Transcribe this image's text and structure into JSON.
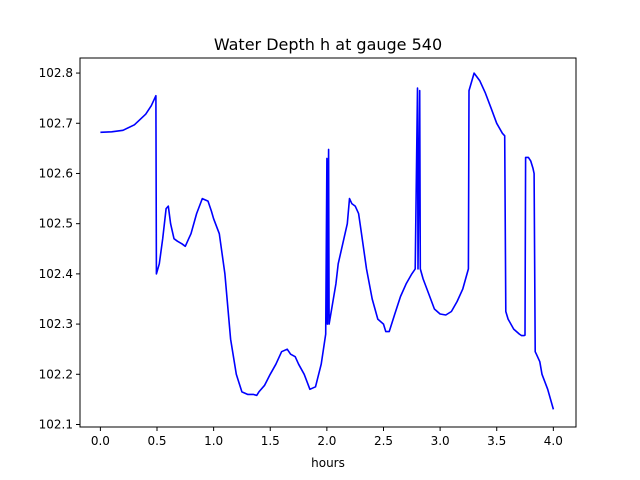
{
  "chart_data": {
    "type": "line",
    "title": "Water Depth h at gauge 540",
    "xlabel": "hours",
    "ylabel": "",
    "xlim": [
      -0.18,
      4.2
    ],
    "ylim": [
      102.095,
      102.83
    ],
    "grid": false,
    "line_color": "#0000ff",
    "x_ticks": [
      0.0,
      0.5,
      1.0,
      1.5,
      2.0,
      2.5,
      3.0,
      3.5,
      4.0
    ],
    "x_tick_labels": [
      "0.0",
      "0.5",
      "1.0",
      "1.5",
      "2.0",
      "2.5",
      "3.0",
      "3.5",
      "4.0"
    ],
    "y_ticks": [
      102.1,
      102.2,
      102.3,
      102.4,
      102.5,
      102.6,
      102.7,
      102.8
    ],
    "y_tick_labels": [
      "102.1",
      "102.2",
      "102.3",
      "102.4",
      "102.5",
      "102.6",
      "102.7",
      "102.8"
    ],
    "series": [
      {
        "x": [
          0,
          0.1,
          0.2,
          0.3,
          0.4,
          0.45,
          0.49,
          0.495,
          0.52,
          0.55,
          0.58,
          0.6,
          0.62,
          0.65,
          0.68,
          0.72,
          0.75,
          0.78,
          0.8,
          0.85,
          0.9,
          0.95,
          0.98,
          1.0,
          1.05,
          1.1,
          1.15,
          1.2,
          1.25,
          1.3,
          1.35,
          1.38,
          1.4,
          1.45,
          1.5,
          1.55,
          1.6,
          1.65,
          1.68,
          1.72,
          1.75,
          1.8,
          1.85,
          1.9,
          1.95,
          1.99,
          2.0,
          2.005,
          2.015,
          2.02,
          2.05,
          2.08,
          2.1,
          2.15,
          2.18,
          2.2,
          2.22,
          2.25,
          2.28,
          2.3,
          2.35,
          2.4,
          2.45,
          2.5,
          2.52,
          2.55,
          2.6,
          2.65,
          2.7,
          2.75,
          2.78,
          2.8,
          2.805,
          2.82,
          2.825,
          2.85,
          2.9,
          2.95,
          3.0,
          3.05,
          3.1,
          3.15,
          3.2,
          3.25,
          3.255,
          3.3,
          3.35,
          3.4,
          3.45,
          3.5,
          3.55,
          3.57,
          3.58,
          3.6,
          3.65,
          3.7,
          3.72,
          3.74,
          3.75,
          3.755,
          3.78,
          3.8,
          3.82,
          3.83,
          3.84,
          3.85,
          3.88,
          3.9,
          3.95,
          4.0
        ],
        "y": [
          102.682,
          102.683,
          102.686,
          102.697,
          102.718,
          102.735,
          102.755,
          102.4,
          102.42,
          102.47,
          102.53,
          102.535,
          102.5,
          102.47,
          102.465,
          102.46,
          102.455,
          102.47,
          102.48,
          102.52,
          102.55,
          102.545,
          102.525,
          102.51,
          102.48,
          102.4,
          102.27,
          102.2,
          102.165,
          102.16,
          102.16,
          102.158,
          102.165,
          102.178,
          102.2,
          102.22,
          102.245,
          102.25,
          102.24,
          102.235,
          102.22,
          102.2,
          102.17,
          102.175,
          102.22,
          102.28,
          102.63,
          102.3,
          102.648,
          102.3,
          102.34,
          102.38,
          102.42,
          102.47,
          102.5,
          102.55,
          102.54,
          102.535,
          102.52,
          102.49,
          102.41,
          102.35,
          102.31,
          102.3,
          102.285,
          102.285,
          102.32,
          102.355,
          102.38,
          102.4,
          102.41,
          102.77,
          102.41,
          102.765,
          102.41,
          102.39,
          102.36,
          102.33,
          102.32,
          102.318,
          102.325,
          102.345,
          102.37,
          102.41,
          102.765,
          102.8,
          102.785,
          102.76,
          102.73,
          102.7,
          102.68,
          102.675,
          102.325,
          102.31,
          102.29,
          102.28,
          102.277,
          102.277,
          102.278,
          102.632,
          102.632,
          102.625,
          102.61,
          102.6,
          102.245,
          102.24,
          102.225,
          102.2,
          102.17,
          102.13
        ]
      }
    ]
  }
}
